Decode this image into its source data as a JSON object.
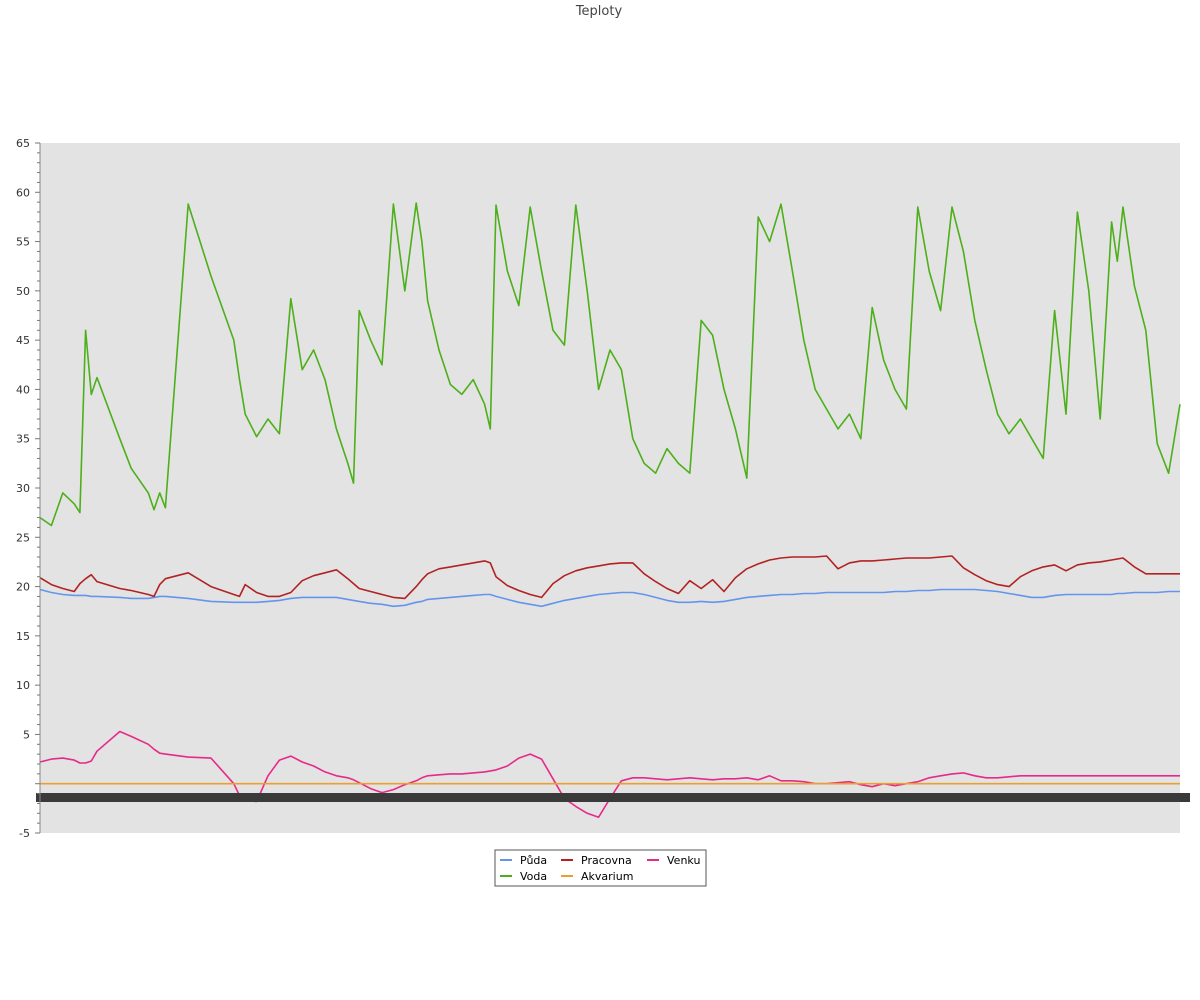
{
  "chart_data": {
    "type": "line",
    "title": "Teploty",
    "xlabel": "",
    "ylabel": "",
    "ylim": [
      -5,
      65
    ],
    "y_ticks": [
      -5,
      5,
      10,
      15,
      20,
      25,
      30,
      35,
      40,
      45,
      50,
      55,
      60,
      65
    ],
    "grid": false,
    "legend_position": "bottom-center",
    "x": [
      0,
      0.01,
      0.02,
      0.03,
      0.035,
      0.04,
      0.045,
      0.05,
      0.07,
      0.08,
      0.095,
      0.1,
      0.105,
      0.11,
      0.13,
      0.15,
      0.17,
      0.175,
      0.18,
      0.19,
      0.2,
      0.21,
      0.22,
      0.23,
      0.24,
      0.25,
      0.26,
      0.27,
      0.275,
      0.28,
      0.29,
      0.3,
      0.31,
      0.32,
      0.33,
      0.335,
      0.34,
      0.35,
      0.36,
      0.37,
      0.38,
      0.39,
      0.395,
      0.4,
      0.41,
      0.42,
      0.43,
      0.44,
      0.45,
      0.46,
      0.47,
      0.48,
      0.49,
      0.5,
      0.51,
      0.52,
      0.53,
      0.54,
      0.55,
      0.56,
      0.57,
      0.58,
      0.59,
      0.6,
      0.61,
      0.62,
      0.63,
      0.64,
      0.65,
      0.66,
      0.67,
      0.68,
      0.69,
      0.7,
      0.71,
      0.72,
      0.73,
      0.74,
      0.75,
      0.76,
      0.77,
      0.78,
      0.79,
      0.8,
      0.81,
      0.82,
      0.83,
      0.84,
      0.85,
      0.86,
      0.87,
      0.88,
      0.89,
      0.9,
      0.91,
      0.92,
      0.93,
      0.94,
      0.945,
      0.95,
      0.96,
      0.97,
      0.98,
      0.99,
      1.0
    ],
    "series": [
      {
        "name": "Půda",
        "color": "#6495ed",
        "values": [
          19.7,
          19.4,
          19.2,
          19.1,
          19.1,
          19.1,
          19.0,
          19.0,
          18.9,
          18.8,
          18.8,
          18.9,
          19.0,
          19.0,
          18.8,
          18.5,
          18.4,
          18.4,
          18.4,
          18.4,
          18.5,
          18.6,
          18.8,
          18.9,
          18.9,
          18.9,
          18.9,
          18.7,
          18.6,
          18.5,
          18.3,
          18.2,
          18.0,
          18.1,
          18.4,
          18.5,
          18.7,
          18.8,
          18.9,
          19.0,
          19.1,
          19.2,
          19.2,
          19.0,
          18.7,
          18.4,
          18.2,
          18.0,
          18.3,
          18.6,
          18.8,
          19.0,
          19.2,
          19.3,
          19.4,
          19.4,
          19.2,
          18.9,
          18.6,
          18.4,
          18.4,
          18.5,
          18.4,
          18.5,
          18.7,
          18.9,
          19.0,
          19.1,
          19.2,
          19.2,
          19.3,
          19.3,
          19.4,
          19.4,
          19.4,
          19.4,
          19.4,
          19.4,
          19.5,
          19.5,
          19.6,
          19.6,
          19.7,
          19.7,
          19.7,
          19.7,
          19.6,
          19.5,
          19.3,
          19.1,
          18.9,
          18.9,
          19.1,
          19.2,
          19.2,
          19.2,
          19.2,
          19.2,
          19.3,
          19.3,
          19.4,
          19.4,
          19.4,
          19.5,
          19.5
        ]
      },
      {
        "name": "Pracovna",
        "color": "#b22222",
        "values": [
          20.9,
          20.2,
          19.8,
          19.5,
          20.3,
          20.8,
          21.2,
          20.5,
          19.8,
          19.6,
          19.2,
          19.0,
          20.2,
          20.8,
          21.4,
          20.0,
          19.2,
          19.0,
          20.2,
          19.4,
          19.0,
          19.0,
          19.4,
          20.6,
          21.1,
          21.4,
          21.7,
          20.8,
          20.3,
          19.8,
          19.5,
          19.2,
          18.9,
          18.8,
          20.0,
          20.7,
          21.3,
          21.8,
          22.0,
          22.2,
          22.4,
          22.6,
          22.4,
          21.0,
          20.1,
          19.6,
          19.2,
          18.9,
          20.3,
          21.1,
          21.6,
          21.9,
          22.1,
          22.3,
          22.4,
          22.4,
          21.3,
          20.5,
          19.8,
          19.3,
          20.6,
          19.8,
          20.7,
          19.5,
          20.9,
          21.8,
          22.3,
          22.7,
          22.9,
          23.0,
          23.0,
          23.0,
          23.1,
          21.8,
          22.4,
          22.6,
          22.6,
          22.7,
          22.8,
          22.9,
          22.9,
          22.9,
          23.0,
          23.1,
          21.9,
          21.2,
          20.6,
          20.2,
          20.0,
          21.0,
          21.6,
          22.0,
          22.2,
          21.6,
          22.2,
          22.4,
          22.5,
          22.7,
          22.8,
          22.9,
          22.0,
          21.3,
          21.3,
          21.3,
          21.3
        ]
      },
      {
        "name": "Venku",
        "color": "#e7298a",
        "values": [
          2.2,
          2.5,
          2.6,
          2.4,
          2.1,
          2.1,
          2.3,
          3.3,
          5.3,
          4.8,
          4.0,
          3.5,
          3.1,
          3.0,
          2.7,
          2.6,
          0.0,
          -1.2,
          -1.7,
          -1.8,
          0.8,
          2.4,
          2.8,
          2.2,
          1.8,
          1.2,
          0.8,
          0.6,
          0.4,
          0.1,
          -0.5,
          -0.9,
          -0.6,
          -0.1,
          0.3,
          0.6,
          0.8,
          0.9,
          1.0,
          1.0,
          1.1,
          1.2,
          1.3,
          1.4,
          1.8,
          2.6,
          3.0,
          2.5,
          0.5,
          -1.5,
          -2.3,
          -3.0,
          -3.4,
          -1.5,
          0.3,
          0.6,
          0.6,
          0.5,
          0.4,
          0.5,
          0.6,
          0.5,
          0.4,
          0.5,
          0.5,
          0.6,
          0.4,
          0.8,
          0.3,
          0.3,
          0.2,
          0.0,
          0.0,
          0.1,
          0.2,
          -0.1,
          -0.3,
          0.0,
          -0.2,
          0.0,
          0.2,
          0.6,
          0.8,
          1.0,
          1.1,
          0.8,
          0.6,
          0.6,
          0.7,
          0.8,
          0.8,
          0.8,
          0.8,
          0.8,
          0.8,
          0.8,
          0.8,
          0.8,
          0.8,
          0.8,
          0.8,
          0.8,
          0.8,
          0.8,
          0.8
        ]
      },
      {
        "name": "Akvarium",
        "color": "#e8a02e",
        "values": [
          0,
          0,
          0,
          0,
          0,
          0,
          0,
          0,
          0,
          0,
          0,
          0,
          0,
          0,
          0,
          0,
          0,
          0,
          0,
          0,
          0,
          0,
          0,
          0,
          0,
          0,
          0,
          0,
          0,
          0,
          0,
          0,
          0,
          0,
          0,
          0,
          0,
          0,
          0,
          0,
          0,
          0,
          0,
          0,
          0,
          0,
          0,
          0,
          0,
          0,
          0,
          0,
          0,
          0,
          0,
          0,
          0,
          0,
          0,
          0,
          0,
          0,
          0,
          0,
          0,
          0,
          0,
          0,
          0,
          0,
          0,
          0,
          0,
          0,
          0,
          0,
          0,
          0,
          0,
          0,
          0,
          0,
          0,
          0,
          0,
          0,
          0,
          0,
          0,
          0,
          0,
          0,
          0,
          0,
          0,
          0,
          0,
          0,
          0,
          0,
          0,
          0,
          0,
          0,
          0
        ]
      },
      {
        "name": "Voda",
        "color": "#4daf1a",
        "values": [
          27.0,
          26.2,
          29.5,
          28.4,
          27.5,
          46.0,
          39.5,
          41.2,
          35.0,
          32.0,
          29.5,
          27.8,
          29.5,
          28.0,
          58.8,
          51.5,
          45.0,
          41.0,
          37.5,
          35.2,
          37.0,
          35.5,
          49.2,
          42.0,
          44.0,
          41.0,
          36.0,
          32.5,
          30.5,
          48.0,
          45.0,
          42.5,
          58.8,
          50.0,
          58.9,
          55.0,
          49.0,
          44.0,
          40.5,
          39.5,
          41.0,
          38.5,
          36.0,
          58.7,
          52.0,
          48.5,
          58.5,
          52.0,
          46.0,
          44.5,
          58.7,
          50.0,
          40.0,
          44.0,
          42.0,
          35.0,
          32.5,
          31.5,
          34.0,
          32.5,
          31.5,
          47.0,
          45.5,
          40.0,
          36.0,
          31.0,
          57.5,
          55.0,
          58.8,
          52.0,
          45.0,
          40.0,
          38.0,
          36.0,
          37.5,
          35.0,
          48.3,
          43.0,
          40.0,
          38.0,
          58.5,
          52.0,
          48.0,
          58.5,
          54.0,
          47.0,
          42.0,
          37.5,
          35.5,
          37.0,
          35.0,
          33.0,
          48.0,
          37.5,
          58.0,
          50.0,
          37.0,
          57.0,
          53.0,
          58.5,
          50.5,
          46.0,
          34.5,
          31.5,
          38.5
        ]
      }
    ],
    "x_axis_note": "x tick labels illegible (overlapping dark band)"
  }
}
